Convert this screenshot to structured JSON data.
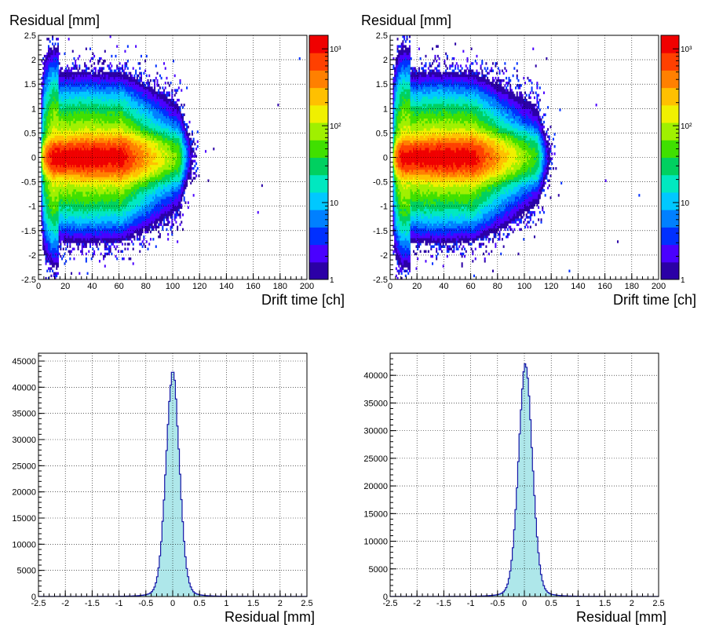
{
  "chart_data": [
    {
      "type": "heatmap",
      "xlabel": "Drift time [ch]",
      "ylabel": "Residual [mm]",
      "xlim": [
        0,
        200
      ],
      "ylim": [
        -2.5,
        2.5
      ],
      "x_ticks": [
        "0",
        "20",
        "40",
        "60",
        "80",
        "100",
        "120",
        "140",
        "160",
        "180",
        "200"
      ],
      "y_ticks": [
        "-2.5",
        "-2",
        "-1.5",
        "-1",
        "-0.5",
        "0",
        "0.5",
        "1",
        "1.5",
        "2",
        "2.5"
      ],
      "zscale": "log",
      "zlim": [
        1,
        1500
      ],
      "z_ticks": [
        {
          "value": 1,
          "label": "1"
        },
        {
          "value": 10,
          "label": "10"
        },
        {
          "value": 100,
          "label": "10²"
        },
        {
          "value": 1000,
          "label": "10³"
        }
      ],
      "grid": true,
      "density_model": {
        "core_x": [
          12,
          60
        ],
        "core_y": 0.0,
        "core_sigma_y": 0.2,
        "halo_sigma_y": 0.55,
        "tail_x_end": 105,
        "peak_count": 1400
      }
    },
    {
      "type": "heatmap",
      "xlabel": "Drift time [ch]",
      "ylabel": "Residual [mm]",
      "xlim": [
        0,
        200
      ],
      "ylim": [
        -2.5,
        2.5
      ],
      "x_ticks": [
        "0",
        "20",
        "40",
        "60",
        "80",
        "100",
        "120",
        "140",
        "160",
        "180",
        "200"
      ],
      "y_ticks": [
        "-2.5",
        "-2",
        "-1.5",
        "-1",
        "-0.5",
        "0",
        "0.5",
        "1",
        "1.5",
        "2",
        "2.5"
      ],
      "zscale": "log",
      "zlim": [
        1,
        1500
      ],
      "z_ticks": [
        {
          "value": 1,
          "label": "1"
        },
        {
          "value": 10,
          "label": "10"
        },
        {
          "value": 100,
          "label": "10²"
        },
        {
          "value": 1000,
          "label": "10³"
        }
      ],
      "grid": true,
      "density_model": {
        "core_x": [
          10,
          60
        ],
        "core_y": 0.0,
        "core_sigma_y": 0.2,
        "halo_sigma_y": 0.55,
        "tail_x_end": 110,
        "peak_count": 1400
      }
    },
    {
      "type": "bar",
      "subtype": "histogram",
      "xlabel": "Residual [mm]",
      "ylabel": "",
      "xlim": [
        -2.5,
        2.5
      ],
      "ylim": [
        0,
        46500
      ],
      "x_ticks": [
        "-2.5",
        "-2",
        "-1.5",
        "-1",
        "-0.5",
        "0",
        "0.5",
        "1",
        "1.5",
        "2",
        "2.5"
      ],
      "y_ticks": [
        {
          "value": 0,
          "label": "0"
        },
        {
          "value": 5000,
          "label": "5000"
        },
        {
          "value": 10000,
          "label": "10000"
        },
        {
          "value": 15000,
          "label": "15000"
        },
        {
          "value": 20000,
          "label": "20000"
        },
        {
          "value": 25000,
          "label": "25000"
        },
        {
          "value": 30000,
          "label": "30000"
        },
        {
          "value": 35000,
          "label": "35000"
        },
        {
          "value": 40000,
          "label": "40000"
        },
        {
          "value": 45000,
          "label": "45000"
        }
      ],
      "grid": true,
      "bins": 200,
      "peak": 43700,
      "mean": 0.0,
      "sigma": 0.125,
      "fill_color": "#aee7ea",
      "line_color": "#1515a6"
    },
    {
      "type": "bar",
      "subtype": "histogram",
      "xlabel": "Residual [mm]",
      "ylabel": "",
      "xlim": [
        -2.5,
        2.5
      ],
      "ylim": [
        0,
        44000
      ],
      "x_ticks": [
        "-2.5",
        "-2",
        "-1.5",
        "-1",
        "-0.5",
        "0",
        "0.5",
        "1",
        "1.5",
        "2",
        "2.5"
      ],
      "y_ticks": [
        {
          "value": 0,
          "label": "0"
        },
        {
          "value": 5000,
          "label": "5000"
        },
        {
          "value": 10000,
          "label": "10000"
        },
        {
          "value": 15000,
          "label": "15000"
        },
        {
          "value": 20000,
          "label": "20000"
        },
        {
          "value": 25000,
          "label": "25000"
        },
        {
          "value": 30000,
          "label": "30000"
        },
        {
          "value": 35000,
          "label": "35000"
        },
        {
          "value": 40000,
          "label": "40000"
        }
      ],
      "grid": true,
      "bins": 200,
      "peak": 42300,
      "mean": 0.02,
      "sigma": 0.13,
      "fill_color": "#aee7ea",
      "line_color": "#1515a6"
    }
  ]
}
